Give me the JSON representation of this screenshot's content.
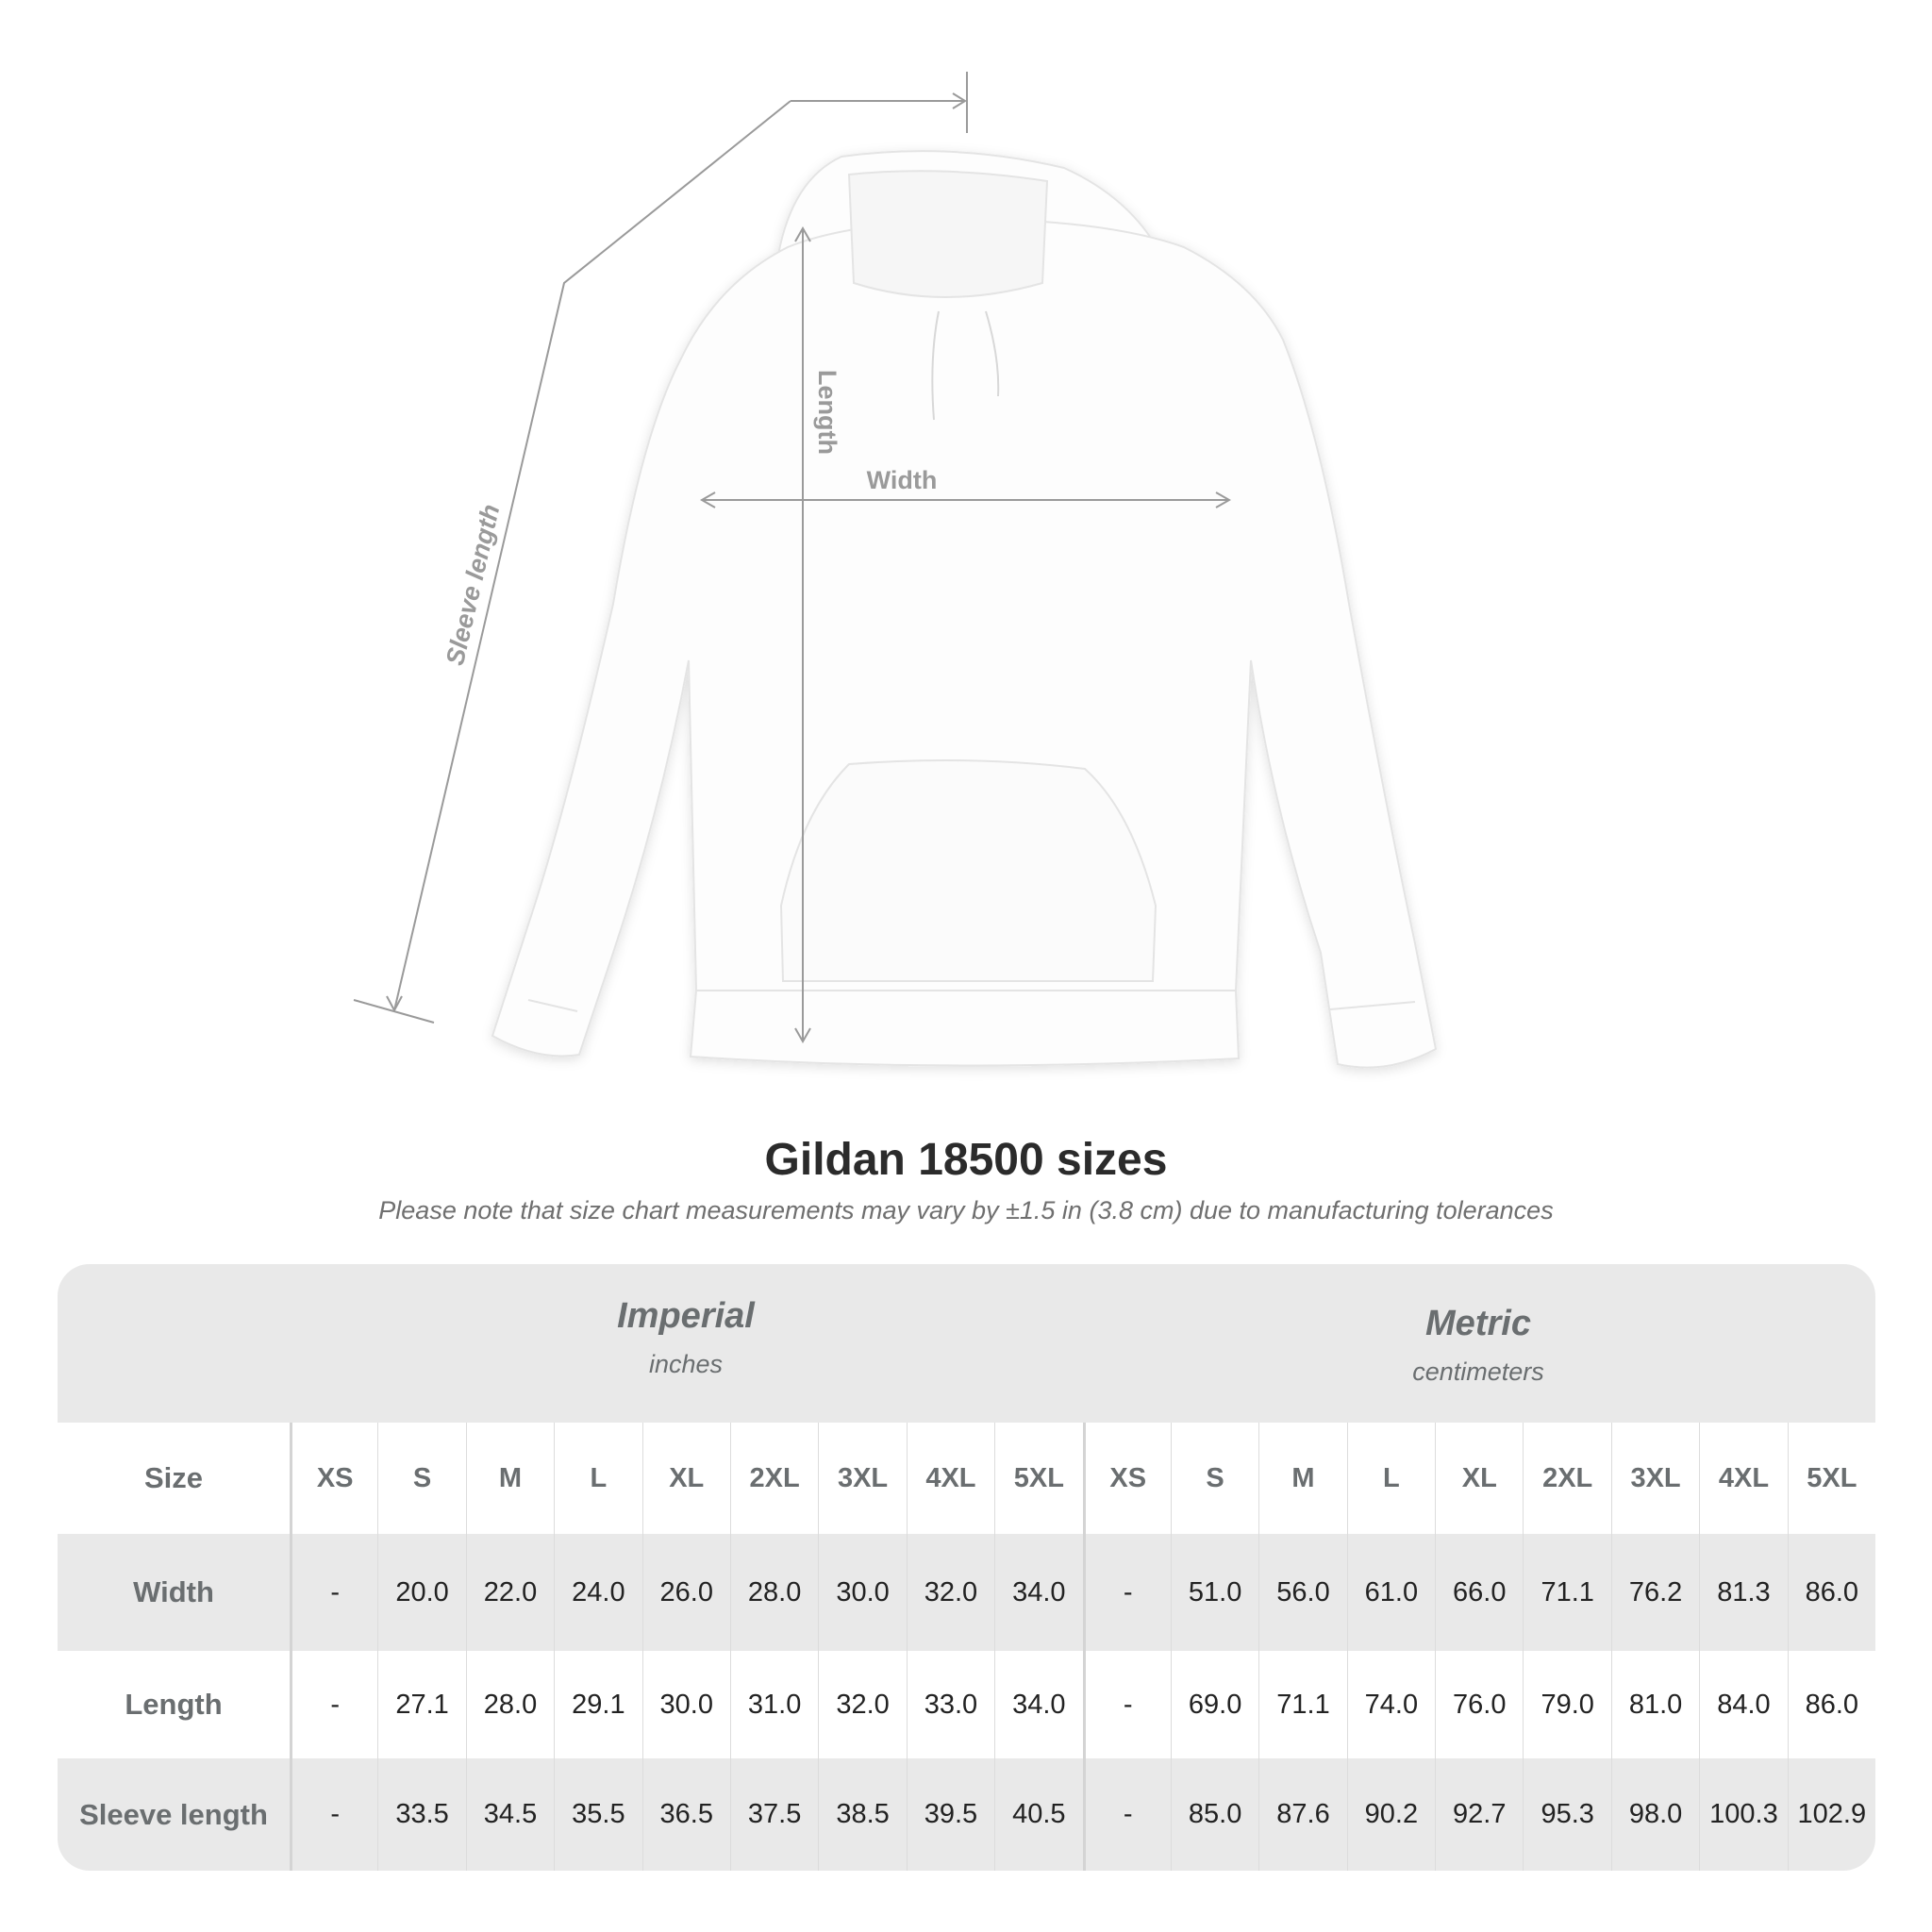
{
  "diagram": {
    "labels": {
      "sleeve": "Sleeve length",
      "length": "Length",
      "width": "Width"
    },
    "line_color": "#9a9a9a",
    "garment_color": "#ffffff"
  },
  "title": "Gildan 18500 sizes",
  "note": "Please note that size chart measurements may vary by ±1.5 in (3.8 cm) due to manufacturing tolerances",
  "table": {
    "systems": [
      {
        "name": "Imperial",
        "unit": "inches"
      },
      {
        "name": "Metric",
        "unit": "centimeters"
      }
    ],
    "size_label": "Size",
    "sizes": [
      "XS",
      "S",
      "M",
      "L",
      "XL",
      "2XL",
      "3XL",
      "4XL",
      "5XL"
    ],
    "rows": [
      {
        "label": "Width",
        "imperial": [
          "-",
          "20.0",
          "22.0",
          "24.0",
          "26.0",
          "28.0",
          "30.0",
          "32.0",
          "34.0"
        ],
        "metric": [
          "-",
          "51.0",
          "56.0",
          "61.0",
          "66.0",
          "71.1",
          "76.2",
          "81.3",
          "86.0"
        ]
      },
      {
        "label": "Length",
        "imperial": [
          "-",
          "27.1",
          "28.0",
          "29.1",
          "30.0",
          "31.0",
          "32.0",
          "33.0",
          "34.0"
        ],
        "metric": [
          "-",
          "69.0",
          "71.1",
          "74.0",
          "76.0",
          "79.0",
          "81.0",
          "84.0",
          "86.0"
        ]
      },
      {
        "label": "Sleeve length",
        "imperial": [
          "-",
          "33.5",
          "34.5",
          "35.5",
          "36.5",
          "37.5",
          "38.5",
          "39.5",
          "40.5"
        ],
        "metric": [
          "-",
          "85.0",
          "87.6",
          "90.2",
          "92.7",
          "95.3",
          "98.0",
          "100.3",
          "102.9"
        ]
      }
    ],
    "band_color": "#e9e9e9"
  }
}
